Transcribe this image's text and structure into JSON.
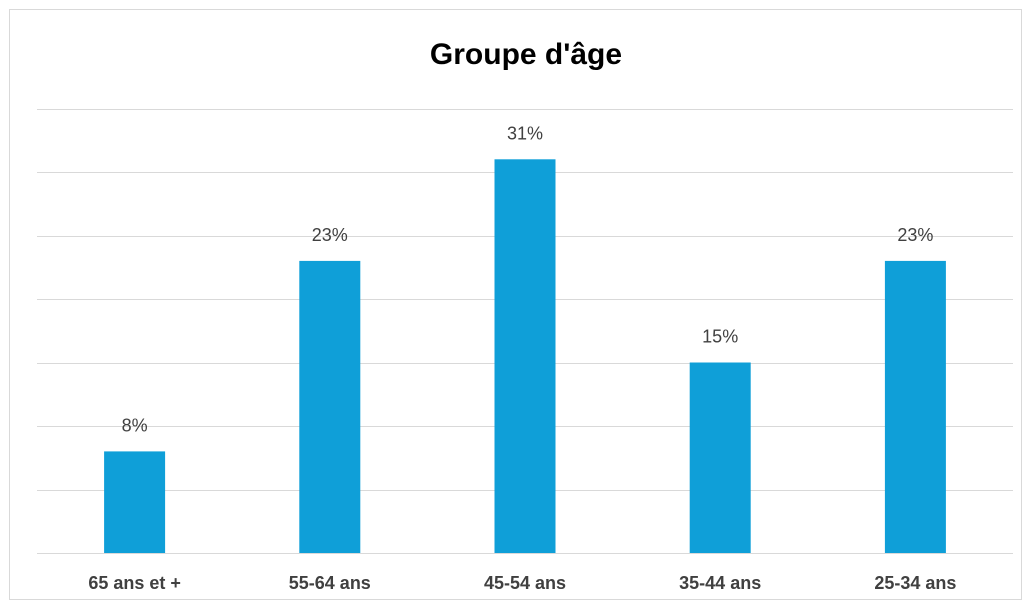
{
  "chart_data": {
    "type": "bar",
    "title": "Groupe d'âge",
    "categories": [
      "65 ans et +",
      "55-64 ans",
      "45-54 ans",
      "35-44 ans",
      "25-34 ans"
    ],
    "values": [
      8,
      23,
      31,
      15,
      23
    ],
    "data_labels": [
      "8%",
      "23%",
      "31%",
      "15%",
      "23%"
    ],
    "unit": "%",
    "xlabel": "",
    "ylabel": "",
    "ylim": [
      0,
      35
    ],
    "y_axis_labels_shown": false,
    "grid": true,
    "legend": "none",
    "colors": {
      "bar": "#0f9fd8",
      "grid": "#d9d9d9",
      "text": "#404040",
      "title": "#000000"
    }
  }
}
